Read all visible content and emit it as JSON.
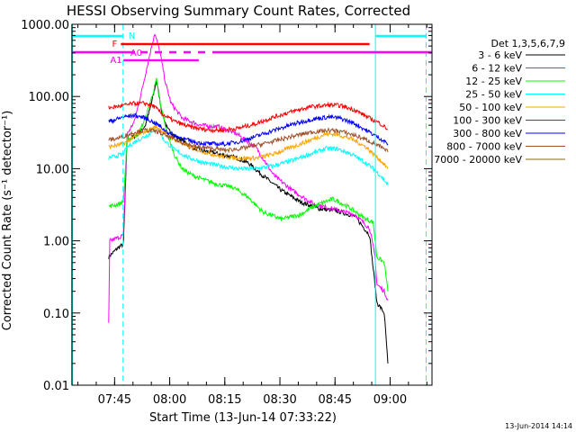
{
  "chart_data": {
    "type": "line",
    "title": "HESSI Observing Summary Count Rates, Corrected",
    "ylabel": "Corrected Count Rate (s⁻¹ detector⁻¹)",
    "xlabel": "Start Time (13-Jun-14 07:33:22)",
    "footer": "13-Jun-2014 14:14",
    "y_scale": "log",
    "ylim": [
      0.01,
      1000
    ],
    "y_ticks": [
      {
        "v": 1000,
        "label": "1000.00"
      },
      {
        "v": 100,
        "label": "100.00"
      },
      {
        "v": 10,
        "label": "10.00"
      },
      {
        "v": 1,
        "label": "1.00"
      },
      {
        "v": 0.1,
        "label": "0.10"
      },
      {
        "v": 0.01,
        "label": "0.01"
      }
    ],
    "x_unit": "minutes after 07:33:22",
    "xlim": [
      0,
      98
    ],
    "x_ticks": [
      {
        "v": 11.6,
        "label": "07:45"
      },
      {
        "v": 26.6,
        "label": "08:00"
      },
      {
        "v": 41.6,
        "label": "08:15"
      },
      {
        "v": 56.6,
        "label": "08:30"
      },
      {
        "v": 71.6,
        "label": "08:45"
      },
      {
        "v": 86.6,
        "label": "09:00"
      }
    ],
    "legend_title": "Det 1,3,5,6,7,9",
    "legend_position": "top-right, outside plot",
    "series": [
      {
        "name": "3 - 6 keV",
        "color": "#000000",
        "points": [
          [
            10,
            0.6
          ],
          [
            12.5,
            0.8
          ],
          [
            14,
            0.9
          ],
          [
            15,
            25
          ],
          [
            18,
            30
          ],
          [
            20,
            40
          ],
          [
            21.5,
            75
          ],
          [
            23,
            165
          ],
          [
            24.5,
            60
          ],
          [
            26,
            35
          ],
          [
            28,
            28
          ],
          [
            30,
            25
          ],
          [
            32,
            20
          ],
          [
            35,
            18
          ],
          [
            40,
            16
          ],
          [
            45,
            14
          ],
          [
            48,
            12
          ],
          [
            52,
            8
          ],
          [
            57,
            5
          ],
          [
            62,
            3.5
          ],
          [
            67,
            2.8
          ],
          [
            72,
            2.6
          ],
          [
            77,
            2.2
          ],
          [
            81,
            1.2
          ],
          [
            83,
            0.14
          ],
          [
            85,
            0.1
          ],
          [
            86,
            0.02
          ]
        ]
      },
      {
        "name": "6 - 12 keV",
        "color": "#ff00ff",
        "points": [
          [
            10,
            0.07
          ],
          [
            10.3,
            1.0
          ],
          [
            12.5,
            1.1
          ],
          [
            14,
            1.2
          ],
          [
            15,
            30
          ],
          [
            17,
            45
          ],
          [
            19,
            120
          ],
          [
            21,
            350
          ],
          [
            22.5,
            750
          ],
          [
            24,
            400
          ],
          [
            25.5,
            150
          ],
          [
            27,
            80
          ],
          [
            30,
            50
          ],
          [
            35,
            40
          ],
          [
            40,
            38
          ],
          [
            45,
            30
          ],
          [
            50,
            20
          ],
          [
            55,
            8
          ],
          [
            60,
            5
          ],
          [
            66,
            3.2
          ],
          [
            72,
            2.7
          ],
          [
            77,
            2.3
          ],
          [
            81,
            1.5
          ],
          [
            82.5,
            0.6
          ],
          [
            83,
            0.25
          ],
          [
            85,
            0.2
          ],
          [
            86,
            0.15
          ]
        ]
      },
      {
        "name": "12 - 25 keV",
        "color": "#00ff00",
        "points": [
          [
            10,
            3.0
          ],
          [
            12.5,
            3.2
          ],
          [
            14,
            3.5
          ],
          [
            15,
            25
          ],
          [
            18,
            30
          ],
          [
            20,
            50
          ],
          [
            22,
            110
          ],
          [
            23,
            170
          ],
          [
            24,
            80
          ],
          [
            26,
            30
          ],
          [
            28,
            15
          ],
          [
            30,
            10
          ],
          [
            33,
            8
          ],
          [
            36,
            7
          ],
          [
            40,
            6
          ],
          [
            44,
            5.5
          ],
          [
            48,
            4
          ],
          [
            52,
            2.5
          ],
          [
            57,
            2.0
          ],
          [
            62,
            2.3
          ],
          [
            67,
            3.2
          ],
          [
            71,
            3.8
          ],
          [
            75,
            3.0
          ],
          [
            80,
            2.0
          ],
          [
            82,
            1.8
          ],
          [
            83,
            0.6
          ],
          [
            85,
            0.5
          ],
          [
            86,
            0.2
          ]
        ]
      },
      {
        "name": "25 - 50 keV",
        "color": "#00ffff",
        "points": [
          [
            10,
            14
          ],
          [
            12,
            15
          ],
          [
            14,
            16
          ],
          [
            15,
            20
          ],
          [
            18,
            25
          ],
          [
            21,
            30
          ],
          [
            23,
            40
          ],
          [
            25,
            25
          ],
          [
            28,
            18
          ],
          [
            32,
            14
          ],
          [
            36,
            12
          ],
          [
            40,
            11
          ],
          [
            45,
            10
          ],
          [
            50,
            10
          ],
          [
            55,
            11
          ],
          [
            60,
            13
          ],
          [
            65,
            16
          ],
          [
            69,
            19
          ],
          [
            72,
            19
          ],
          [
            76,
            16
          ],
          [
            80,
            12
          ],
          [
            82,
            10
          ],
          [
            84,
            8
          ],
          [
            86,
            6
          ]
        ]
      },
      {
        "name": "50 - 100 keV",
        "color": "#ffa500",
        "points": [
          [
            10,
            20
          ],
          [
            12,
            21
          ],
          [
            14,
            22
          ],
          [
            17,
            28
          ],
          [
            20,
            33
          ],
          [
            23,
            38
          ],
          [
            25,
            32
          ],
          [
            28,
            25
          ],
          [
            32,
            20
          ],
          [
            36,
            17
          ],
          [
            40,
            15
          ],
          [
            45,
            14
          ],
          [
            50,
            14
          ],
          [
            55,
            16
          ],
          [
            60,
            20
          ],
          [
            65,
            25
          ],
          [
            69,
            30
          ],
          [
            72,
            30
          ],
          [
            76,
            26
          ],
          [
            80,
            20
          ],
          [
            82,
            16
          ],
          [
            84,
            13
          ],
          [
            86,
            10
          ]
        ]
      },
      {
        "name": "100 - 300 keV",
        "color": "#ff0000",
        "points": [
          [
            10,
            70
          ],
          [
            12,
            72
          ],
          [
            14,
            75
          ],
          [
            17,
            80
          ],
          [
            20,
            80
          ],
          [
            22,
            75
          ],
          [
            25,
            55
          ],
          [
            28,
            45
          ],
          [
            32,
            38
          ],
          [
            36,
            35
          ],
          [
            40,
            34
          ],
          [
            45,
            36
          ],
          [
            50,
            42
          ],
          [
            55,
            52
          ],
          [
            60,
            62
          ],
          [
            65,
            72
          ],
          [
            70,
            76
          ],
          [
            73,
            75
          ],
          [
            77,
            65
          ],
          [
            81,
            50
          ],
          [
            84,
            42
          ],
          [
            86,
            35
          ]
        ]
      },
      {
        "name": "300 - 800 keV",
        "color": "#0000ff",
        "points": [
          [
            10,
            45
          ],
          [
            12,
            48
          ],
          [
            14,
            52
          ],
          [
            17,
            55
          ],
          [
            20,
            50
          ],
          [
            23,
            42
          ],
          [
            26,
            32
          ],
          [
            30,
            26
          ],
          [
            34,
            23
          ],
          [
            38,
            22
          ],
          [
            42,
            22
          ],
          [
            46,
            24
          ],
          [
            50,
            28
          ],
          [
            55,
            34
          ],
          [
            60,
            41
          ],
          [
            65,
            48
          ],
          [
            70,
            52
          ],
          [
            73,
            50
          ],
          [
            77,
            42
          ],
          [
            81,
            32
          ],
          [
            84,
            26
          ],
          [
            86,
            22
          ]
        ]
      },
      {
        "name": "800 - 7000 keV",
        "color": "#a0522d",
        "points": [
          [
            10,
            25
          ],
          [
            12,
            26
          ],
          [
            14,
            28
          ],
          [
            17,
            32
          ],
          [
            20,
            34
          ],
          [
            23,
            33
          ],
          [
            26,
            28
          ],
          [
            30,
            23
          ],
          [
            34,
            20
          ],
          [
            38,
            19
          ],
          [
            42,
            18
          ],
          [
            46,
            19
          ],
          [
            50,
            21
          ],
          [
            55,
            24
          ],
          [
            60,
            28
          ],
          [
            65,
            32
          ],
          [
            70,
            34
          ],
          [
            73,
            33
          ],
          [
            77,
            29
          ],
          [
            81,
            24
          ],
          [
            84,
            20
          ],
          [
            86,
            17
          ]
        ]
      },
      {
        "name": "7000 - 20000 keV",
        "color": "#8b6914",
        "points": []
      }
    ],
    "annotations": [
      {
        "label": "F",
        "color": "#ff0000"
      },
      {
        "label": "N",
        "color": "#00ffff"
      },
      {
        "label": "A1",
        "color": "#ff00ff"
      },
      {
        "label": "A0",
        "color": "#ff00ff"
      }
    ]
  }
}
